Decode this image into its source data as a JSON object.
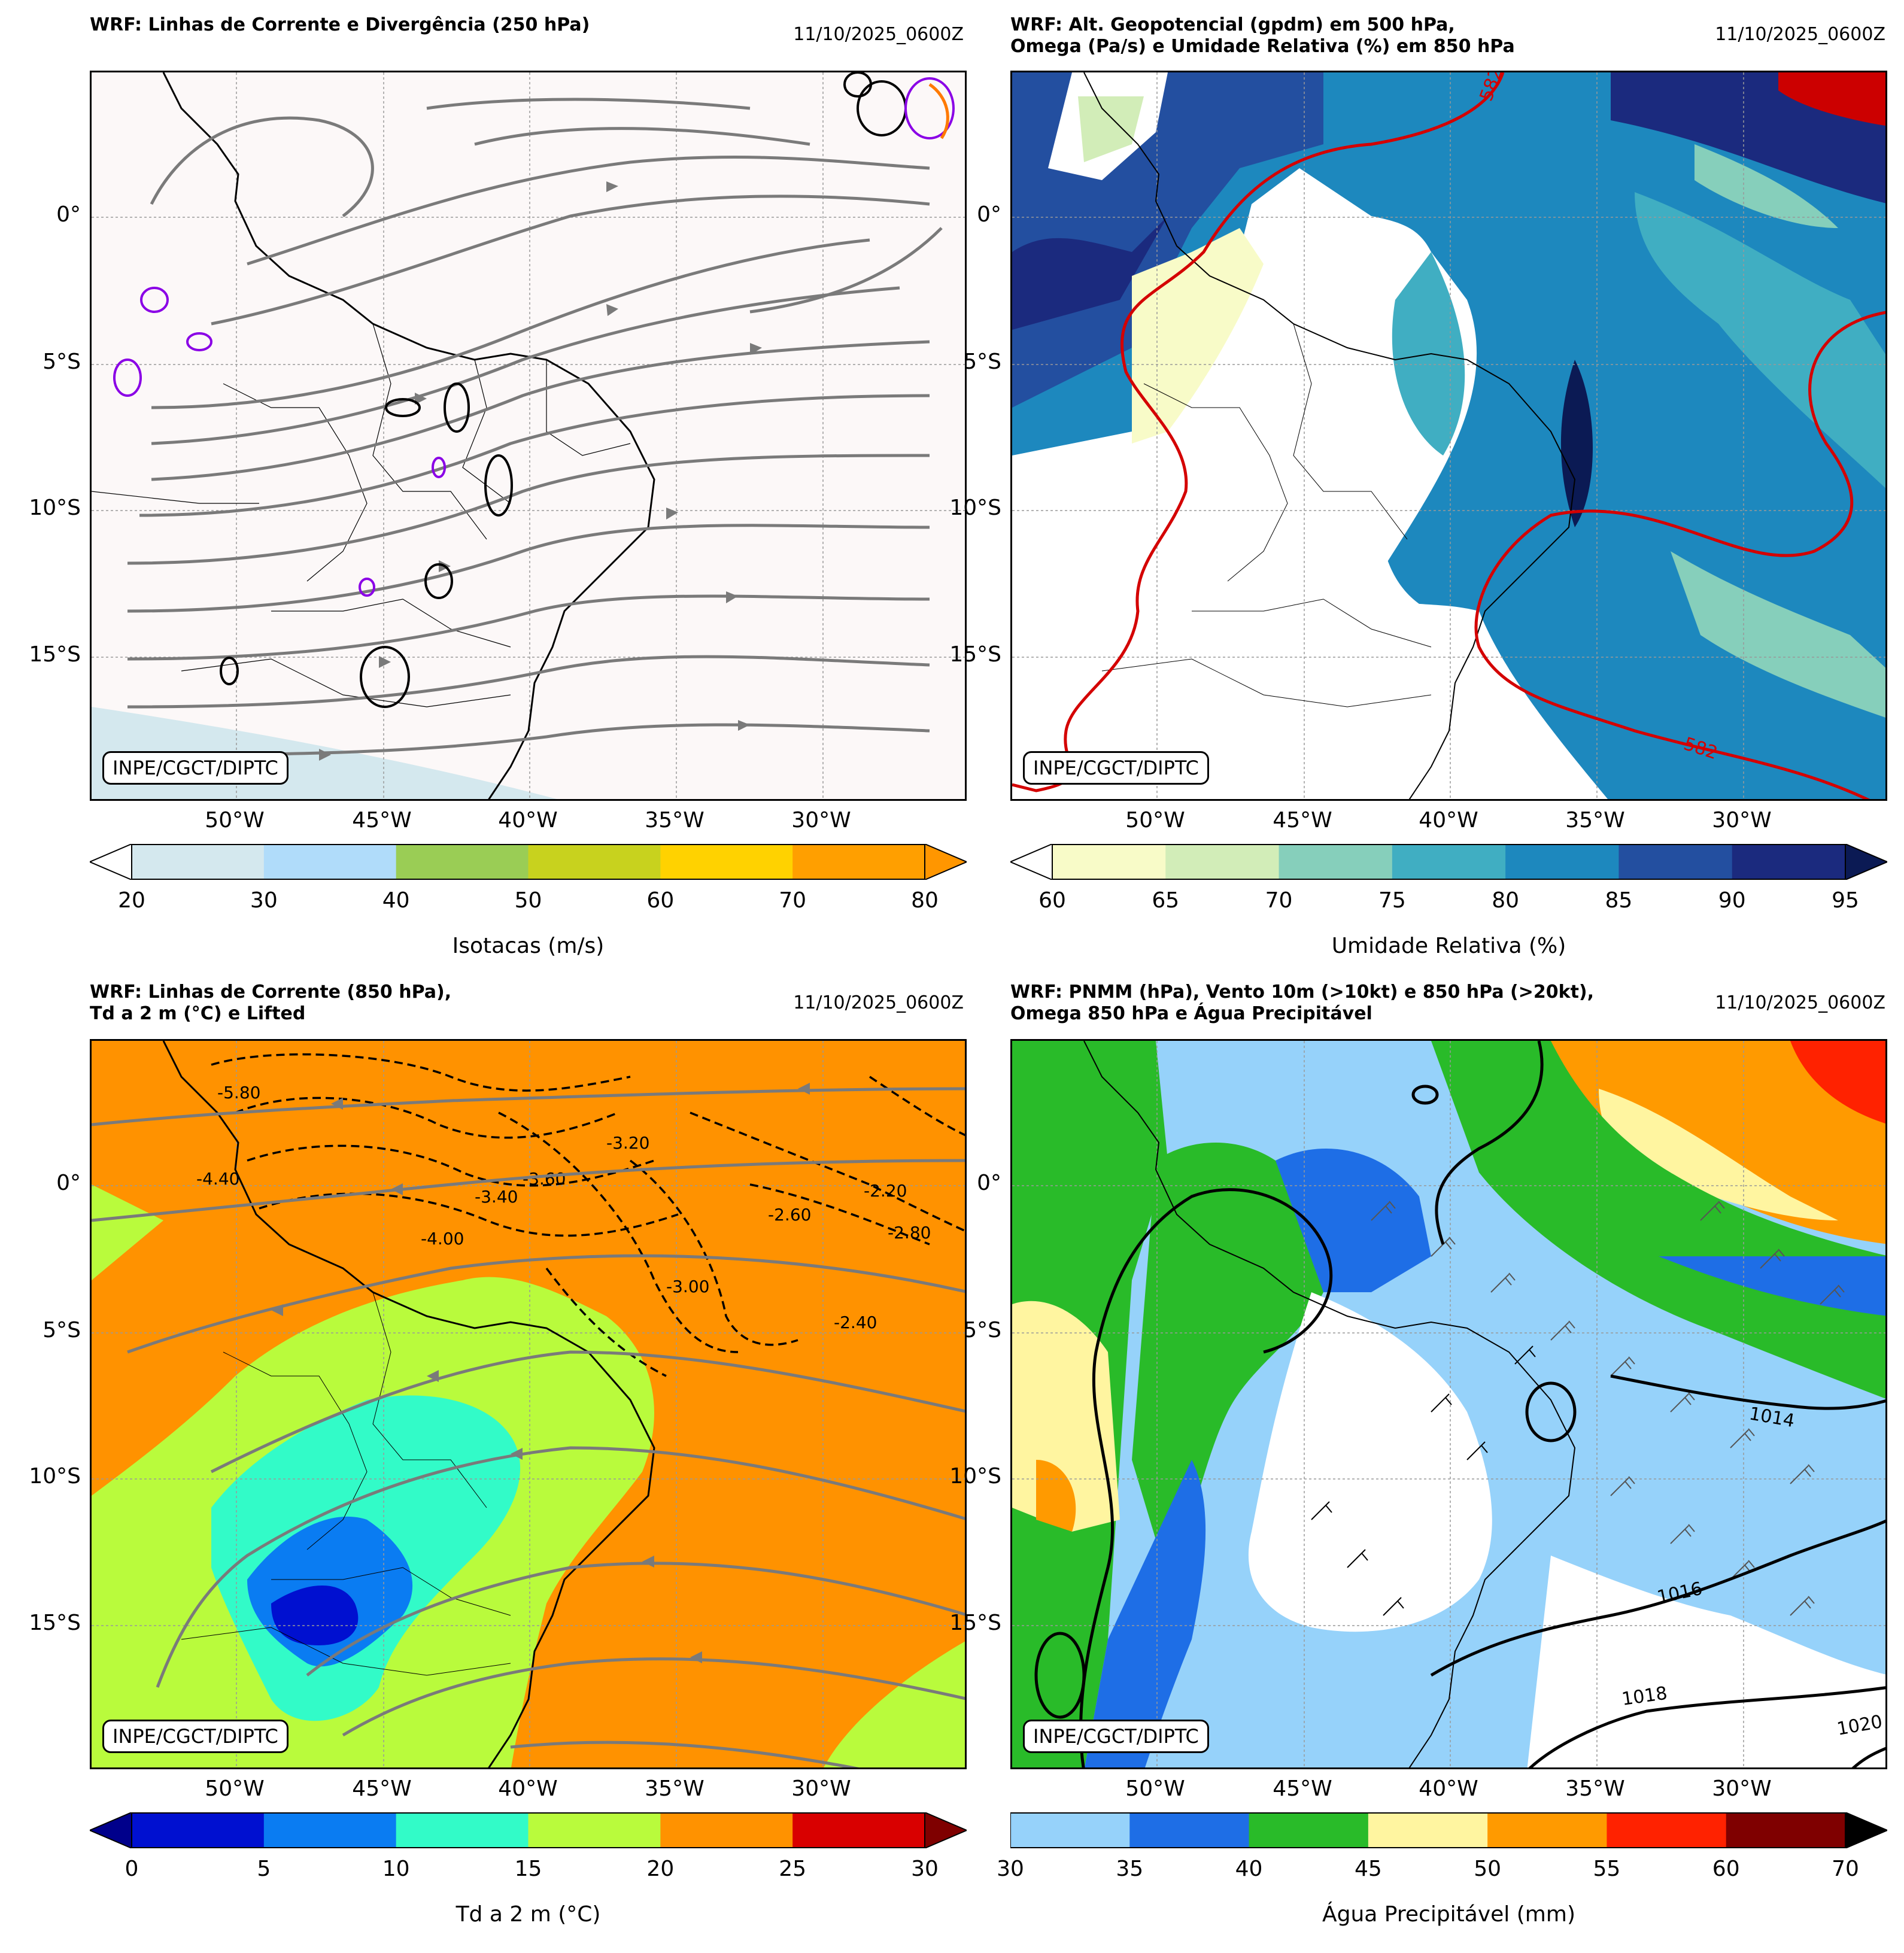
{
  "panels": [
    {
      "id": "p1",
      "title": "WRF: Linhas de Corrente e Divergência (250 hPa)",
      "date": "11/10/2025_0600Z",
      "credit": "INPE/CGCT/DIPTC",
      "colorbar_label": "Isotacas (m/s)",
      "colorbar_ticks": [
        "20",
        "30",
        "40",
        "50",
        "60",
        "70",
        "80"
      ],
      "colorbar_colors": [
        "#d4e8ee",
        "#b0dcfa",
        "#9acd55",
        "#c8d21e",
        "#ffd200",
        "#ff9f00",
        "#ff9600"
      ],
      "background": "#fcf8f8"
    },
    {
      "id": "p2",
      "title": "WRF: Alt. Geopotencial (gpdm) em 500 hPa,\nOmega (Pa/s) e Umidade Relativa (%) em 850 hPa",
      "date": "11/10/2025_0600Z",
      "credit": "INPE/CGCT/DIPTC",
      "colorbar_label": "Umidade Relativa (%)",
      "colorbar_ticks": [
        "60",
        "65",
        "70",
        "75",
        "80",
        "85",
        "90",
        "95"
      ],
      "colorbar_colors": [
        "#f8fbc8",
        "#d2edb8",
        "#86cfbb",
        "#40aec2",
        "#1d88be",
        "#234fa0",
        "#1b2a7e",
        "#0b1a54"
      ],
      "contour_label": "582",
      "background": "#ffffff"
    },
    {
      "id": "p3",
      "title": "WRF: Linhas de Corrente (850 hPa),\nTd a 2 m (°C) e Lifted",
      "date": "11/10/2025_0600Z",
      "credit": "INPE/CGCT/DIPTC",
      "colorbar_label": "Td a 2 m (°C)",
      "colorbar_ticks": [
        "0",
        "5",
        "10",
        "15",
        "20",
        "25",
        "30"
      ],
      "colorbar_colors": [
        "#0010d0",
        "#0a7cf2",
        "#32fbc8",
        "#b9fb3c",
        "#ff9200",
        "#d90000",
        "#7f0000"
      ],
      "lifted_labels": [
        "-5.80",
        "-4.40",
        "-4.00",
        "-3.60",
        "-3.40",
        "-3.20",
        "-3.00",
        "-2.80",
        "-2.60",
        "-2.40",
        "-2.20"
      ],
      "background": "#ff9200"
    },
    {
      "id": "p4",
      "title": "WRF: PNMM (hPa), Vento 10m (>10kt) e 850 hPa (>20kt),\nOmega 850 hPa e Água Precipitável",
      "date": "11/10/2025_0600Z",
      "credit": "INPE/CGCT/DIPTC",
      "colorbar_label": "Água Precipitável (mm)",
      "colorbar_ticks": [
        "30",
        "35",
        "40",
        "45",
        "50",
        "55",
        "60",
        "70"
      ],
      "colorbar_colors": [
        "#96d2fa",
        "#1e6ee6",
        "#29bb29",
        "#fff5a0",
        "#ff9a00",
        "#ff2200",
        "#7f0000",
        "#000000"
      ],
      "isobar_labels": [
        "1014",
        "1016",
        "1018",
        "1020"
      ],
      "background": "#ffffff"
    }
  ],
  "lat_labels": [
    "0°",
    "5°S",
    "10°S",
    "15°S"
  ],
  "lon_labels": [
    "50°W",
    "45°W",
    "40°W",
    "35°W",
    "30°W"
  ],
  "icons": {
    "streamline_arrow": "triangle",
    "wind_barb": "barb"
  }
}
